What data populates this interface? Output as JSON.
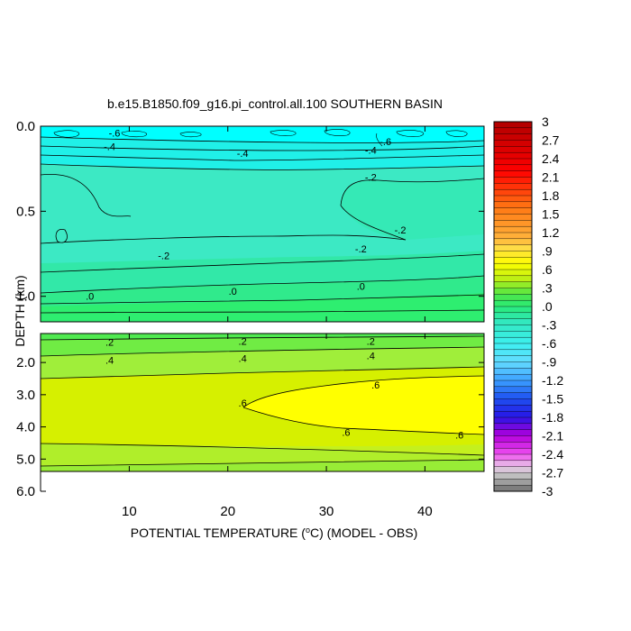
{
  "chart_data": {
    "type": "contour",
    "title": "b.e15.B1850.f09_g16.pi_control.all.100 SOUTHERN BASIN",
    "xlabel_prefix": "POTENTIAL TEMPERATURE (",
    "xlabel_unit": "C",
    "xlabel_suffix": ") (MODEL - OBS)",
    "xlabel_degree": "o",
    "ylabel": "DEPTH (km)",
    "xlim": [
      1,
      46
    ],
    "x_ticks": [
      "10",
      "20",
      "30",
      "40"
    ],
    "x_tick_values": [
      10,
      20,
      30,
      40
    ],
    "upper_panel": {
      "ylim": [
        0.0,
        1.15
      ],
      "y_ticks": [
        "0.0",
        "0.5",
        "1.0"
      ],
      "y_tick_values": [
        0.0,
        0.5,
        1.0
      ]
    },
    "lower_panel": {
      "ylim": [
        1.1,
        6.0
      ],
      "y_ticks": [
        "2.0",
        "3.0",
        "4.0",
        "5.0",
        "6.0"
      ],
      "y_tick_values": [
        2.0,
        3.0,
        4.0,
        5.0,
        6.0
      ]
    },
    "colorbar": {
      "min": -3,
      "max": 3,
      "step": 0.1,
      "labels": [
        "3",
        "2.7",
        "2.4",
        "2.1",
        "1.8",
        "1.5",
        "1.2",
        ".9",
        ".6",
        ".3",
        ".0",
        "-.3",
        "-.6",
        "-.9",
        "-1.2",
        "-1.5",
        "-1.8",
        "-2.1",
        "-2.4",
        "-2.7",
        "-3"
      ],
      "label_values": [
        3,
        2.7,
        2.4,
        2.1,
        1.8,
        1.5,
        1.2,
        0.9,
        0.6,
        0.3,
        0.0,
        -0.3,
        -0.6,
        -0.9,
        -1.2,
        -1.5,
        -1.8,
        -2.1,
        -2.4,
        -2.7,
        -3
      ]
    },
    "contour_labels": [
      {
        "text": "-.6",
        "x": 8.5,
        "depth": 0.04
      },
      {
        "text": "-.4",
        "x": 8.0,
        "depth": 0.12
      },
      {
        "text": "-.4",
        "x": 21.5,
        "depth": 0.16
      },
      {
        "text": "-.4",
        "x": 34.5,
        "depth": 0.14
      },
      {
        "text": "-.6",
        "x": 36.0,
        "depth": 0.09
      },
      {
        "text": "-.2",
        "x": 34.5,
        "depth": 0.3
      },
      {
        "text": "-.2",
        "x": 37.5,
        "depth": 0.61
      },
      {
        "text": "-.2",
        "x": 33.5,
        "depth": 0.72
      },
      {
        "text": "-.2",
        "x": 13.5,
        "depth": 0.76
      },
      {
        "text": ".0",
        "x": 6.0,
        "depth": 1.0
      },
      {
        "text": ".0",
        "x": 20.5,
        "depth": 0.97
      },
      {
        "text": ".0",
        "x": 33.5,
        "depth": 0.94
      },
      {
        "text": ".2",
        "x": 8.0,
        "depth": 1.37
      },
      {
        "text": ".2",
        "x": 21.5,
        "depth": 1.34
      },
      {
        "text": ".2",
        "x": 34.5,
        "depth": 1.34
      },
      {
        "text": ".4",
        "x": 8.0,
        "depth": 1.92
      },
      {
        "text": ".4",
        "x": 21.5,
        "depth": 1.87
      },
      {
        "text": ".4",
        "x": 34.5,
        "depth": 1.78
      },
      {
        "text": ".6",
        "x": 21.5,
        "depth": 3.25
      },
      {
        "text": ".6",
        "x": 35.0,
        "depth": 2.7
      },
      {
        "text": ".6",
        "x": 32.0,
        "depth": 4.17
      },
      {
        "text": ".6",
        "x": 43.5,
        "depth": 4.25
      }
    ]
  }
}
